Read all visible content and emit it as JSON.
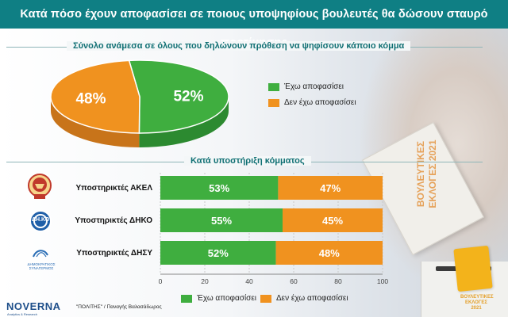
{
  "header": {
    "title": "Κατά πόσο έχουν αποφασίσει σε ποιους υποψηφίους βουλευτές θα δώσουν σταυρό προτίμησης"
  },
  "pie_section": {
    "title": "Σύνολο ανάμεσα σε όλους που δηλώνουν πρόθεση να ψηφίσουν κάποιο κόμμα"
  },
  "bar_section": {
    "title": "Κατά υποστήριξη κόμματος"
  },
  "colors": {
    "green": "#3fae3f",
    "orange": "#f0921f",
    "teal": "#0f7f84"
  },
  "legend": {
    "decided": "Έχω αποφασίσει",
    "undecided": "Δεν έχω αποφασίσει"
  },
  "logos": {
    "akel": "ΑΚΕΛ",
    "diko": "ΔΗ.ΚΟ",
    "disy": "ΔΗΜΟΚΡΑΤΙΚΟΣ ΣΥΝΑΓΕΡΜΟΣ"
  },
  "decor": {
    "ballot": "ΒΟΥΛΕΥΤΙΚΕΣ ΕΚΛΟΓΕΣ 2021",
    "box_badge": "ΒΟΥΛΕΥΤΙΚΕΣ ΕΚΛΟΓΕΣ 2021"
  },
  "footer": {
    "brand": "NOVERNA",
    "brand_sub": "Analytics & Research",
    "credit": "\"ΠΟΛΙΤΗΣ\" / Παναγής Βαλασάδωρος"
  },
  "chart_data": [
    {
      "type": "pie",
      "slices": [
        {
          "name": "Έχω αποφασίσει",
          "value": 52,
          "label": "52%"
        },
        {
          "name": "Δεν έχω αποφασίσει",
          "value": 48,
          "label": "48%"
        }
      ]
    },
    {
      "type": "bar",
      "orientation": "horizontal",
      "stacked": true,
      "categories": [
        "Υποστηρικτές ΑΚΕΛ",
        "Υποστηρικτές ΔΗΚΟ",
        "Υποστηρικτές ΔΗΣΥ"
      ],
      "series": [
        {
          "name": "Έχω αποφασίσει",
          "values": [
            53,
            55,
            52
          ],
          "labels": [
            "53%",
            "55%",
            "52%"
          ]
        },
        {
          "name": "Δεν έχω αποφασίσει",
          "values": [
            47,
            45,
            48
          ],
          "labels": [
            "47%",
            "45%",
            "48%"
          ]
        }
      ],
      "xlim": [
        0,
        100
      ],
      "xticks": [
        0,
        20,
        40,
        60,
        80,
        100
      ],
      "legend_position": "bottom"
    }
  ]
}
